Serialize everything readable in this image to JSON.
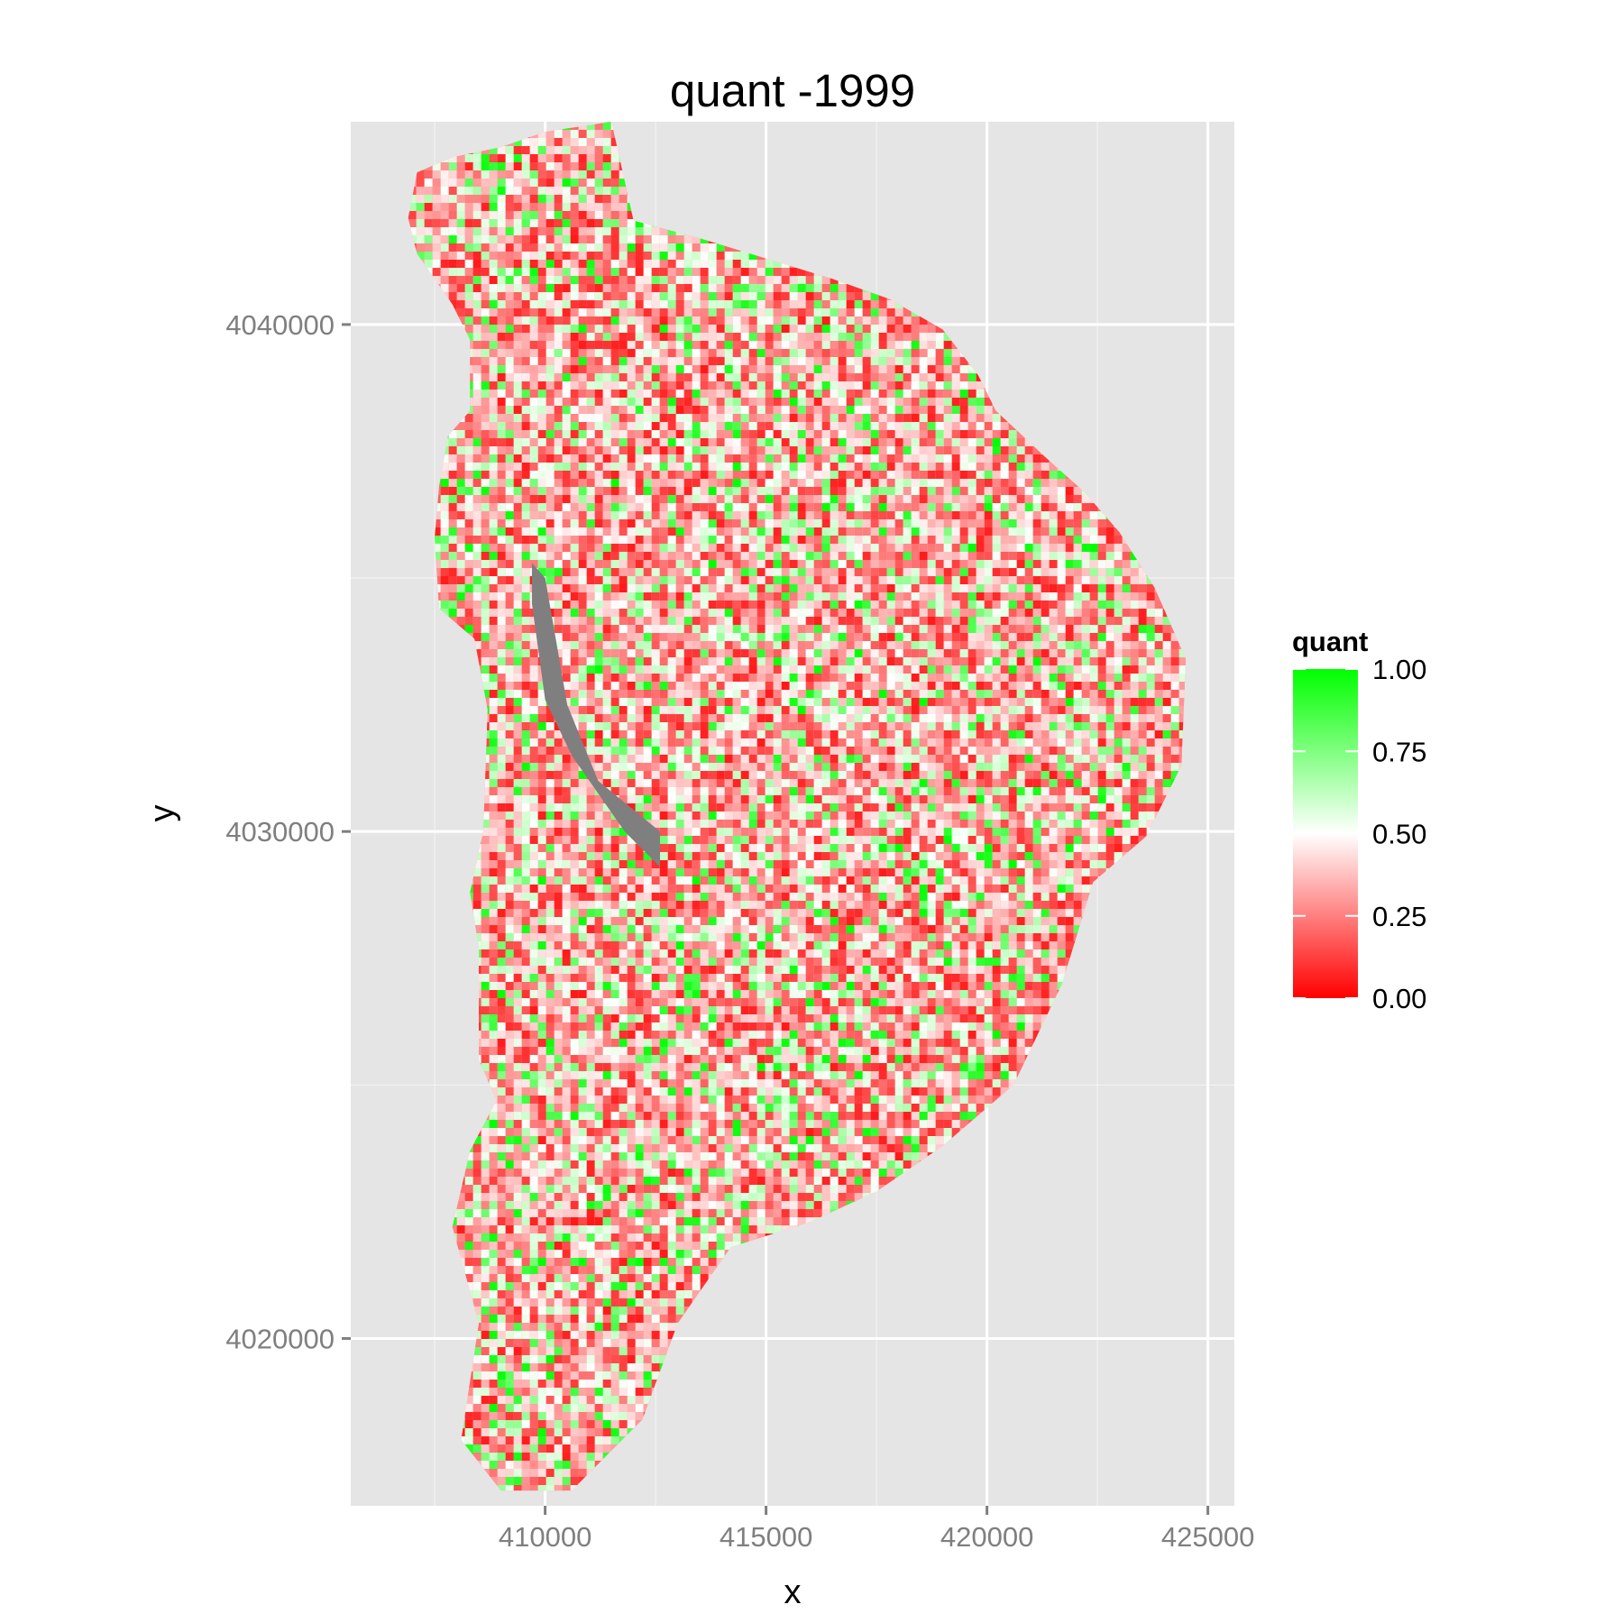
{
  "chart_data": {
    "type": "heatmap",
    "title": "quant -1999",
    "xlabel": "x",
    "ylabel": "y",
    "xlim": [
      405600,
      425600
    ],
    "ylim": [
      4016700,
      4044000
    ],
    "x_ticks": [
      410000,
      415000,
      420000,
      425000
    ],
    "x_tick_labels": [
      "410000",
      "415000",
      "420000",
      "425000"
    ],
    "y_ticks": [
      4020000,
      4030000,
      4040000
    ],
    "y_tick_labels": [
      "4020000",
      "4030000",
      "4040000"
    ],
    "grid": true,
    "panel_background": "#e5e5e5",
    "gridline_color": "#ffffff",
    "na_color": "#7f7f7f",
    "legend": {
      "title": "quant",
      "position": "right",
      "type": "colorbar",
      "breaks": [
        1.0,
        0.75,
        0.5,
        0.25,
        0.0
      ],
      "labels": [
        "1.00",
        "0.75",
        "0.50",
        "0.25",
        "0.00"
      ],
      "colors": {
        "low": "#ff0000",
        "mid": "#ffffff",
        "high": "#00ff00"
      },
      "midpoint": 0.5,
      "limits": [
        0,
        1
      ]
    },
    "outer_boundary": [
      [
        412000,
        4042050
      ],
      [
        413500,
        4041700
      ],
      [
        415000,
        4041300
      ],
      [
        416500,
        4040900
      ],
      [
        417800,
        4040500
      ],
      [
        419000,
        4039900
      ],
      [
        419800,
        4039000
      ],
      [
        420200,
        4038300
      ],
      [
        421300,
        4037400
      ],
      [
        422200,
        4036700
      ],
      [
        423000,
        4035900
      ],
      [
        423800,
        4034800
      ],
      [
        424500,
        4033400
      ],
      [
        424400,
        4031300
      ],
      [
        423600,
        4029900
      ],
      [
        422400,
        4029000
      ],
      [
        421700,
        4027000
      ],
      [
        420600,
        4025000
      ],
      [
        419000,
        4023800
      ],
      [
        417500,
        4022900
      ],
      [
        416000,
        4022300
      ],
      [
        414200,
        4021800
      ],
      [
        413000,
        4020300
      ],
      [
        412200,
        4018400
      ],
      [
        410600,
        4017000
      ],
      [
        409000,
        4017000
      ],
      [
        408100,
        4018000
      ],
      [
        408500,
        4020300
      ],
      [
        407900,
        4022200
      ],
      [
        408300,
        4023700
      ],
      [
        408900,
        4024700
      ],
      [
        408500,
        4025500
      ],
      [
        408500,
        4027700
      ],
      [
        408300,
        4028800
      ],
      [
        408600,
        4030000
      ],
      [
        408700,
        4032400
      ],
      [
        408400,
        4033800
      ],
      [
        407600,
        4034400
      ],
      [
        407500,
        4035800
      ],
      [
        407600,
        4036800
      ],
      [
        407800,
        4037800
      ],
      [
        408300,
        4038300
      ],
      [
        408300,
        4039700
      ],
      [
        407900,
        4040400
      ],
      [
        407100,
        4041400
      ],
      [
        406900,
        4042100
      ],
      [
        407100,
        4043000
      ],
      [
        407900,
        4043300
      ],
      [
        409000,
        4043500
      ],
      [
        410000,
        4043800
      ],
      [
        411500,
        4044000
      ]
    ],
    "inner_boundary": [
      [
        409900,
        4038300
      ],
      [
        411300,
        4039100
      ],
      [
        413000,
        4039300
      ],
      [
        414200,
        4039000
      ],
      [
        415600,
        4038800
      ],
      [
        417500,
        4038900
      ],
      [
        419000,
        4038700
      ],
      [
        420200,
        4038300
      ],
      [
        421000,
        4037200
      ],
      [
        422100,
        4035600
      ],
      [
        422200,
        4034000
      ],
      [
        422000,
        4032200
      ],
      [
        421800,
        4030900
      ],
      [
        421000,
        4030000
      ],
      [
        419800,
        4029000
      ],
      [
        419200,
        4027700
      ],
      [
        418500,
        4026400
      ],
      [
        417200,
        4025500
      ],
      [
        415700,
        4024700
      ],
      [
        414500,
        4024000
      ],
      [
        413300,
        4023500
      ],
      [
        411600,
        4022000
      ],
      [
        410200,
        4021800
      ],
      [
        410100,
        4023800
      ],
      [
        410600,
        4025600
      ],
      [
        412000,
        4027400
      ],
      [
        412600,
        4028600
      ],
      [
        412500,
        4030000
      ],
      [
        410700,
        4032300
      ],
      [
        409800,
        4034600
      ],
      [
        409700,
        4036300
      ]
    ],
    "na_region": [
      [
        409700,
        4035300
      ],
      [
        410000,
        4035000
      ],
      [
        410500,
        4032500
      ],
      [
        411200,
        4031000
      ],
      [
        412600,
        4030000
      ],
      [
        412600,
        4029300
      ],
      [
        411800,
        4030000
      ],
      [
        410600,
        4031500
      ],
      [
        410000,
        4032600
      ],
      [
        409700,
        4034500
      ]
    ]
  }
}
